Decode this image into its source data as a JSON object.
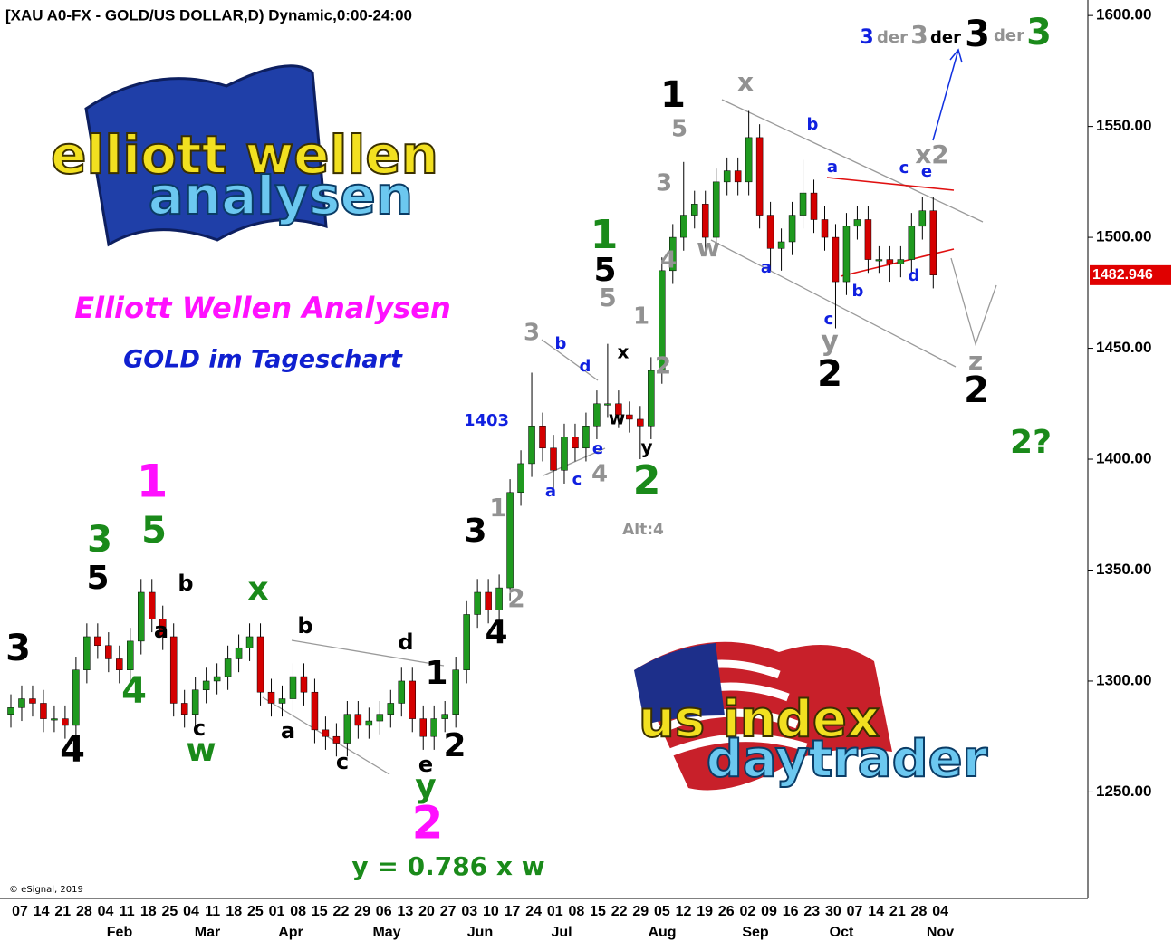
{
  "chart_data": {
    "type": "candlestick",
    "title": "[XAU A0-FX - GOLD/US DOLLAR,D) Dynamic,0:00-24:00",
    "subtitle": "Elliott Wellen Analysen",
    "caption": "GOLD im Tageschart",
    "copyright": "© eSignal, 2019",
    "logo_top": [
      "elliott wellen",
      "analysen"
    ],
    "logo_bottom": [
      "us index",
      "daytrader"
    ],
    "up_color": "#1f9a1f",
    "down_color": "#d40000",
    "open": [
      1285,
      1288,
      1292,
      1290,
      1283,
      1283,
      1280,
      1305,
      1320,
      1316,
      1310,
      1305,
      1318,
      1340,
      1328,
      1320,
      1290,
      1285,
      1296,
      1300,
      1302,
      1310,
      1315,
      1320,
      1295,
      1290,
      1292,
      1302,
      1295,
      1278,
      1275,
      1272,
      1285,
      1280,
      1282,
      1285,
      1290,
      1300,
      1283,
      1275,
      1283,
      1285,
      1305,
      1330,
      1340,
      1332,
      1342,
      1385,
      1398,
      1415,
      1405,
      1395,
      1410,
      1405,
      1415,
      1425,
      1425,
      1420,
      1418,
      1415,
      1440,
      1485,
      1500,
      1510,
      1515,
      1500,
      1525,
      1530,
      1525,
      1545,
      1510,
      1495,
      1498,
      1510,
      1520,
      1508,
      1500,
      1480,
      1505,
      1508,
      1490,
      1490,
      1488,
      1490,
      1505,
      1512
    ],
    "high": [
      1294,
      1298,
      1298,
      1296,
      1289,
      1289,
      1311,
      1326,
      1326,
      1322,
      1316,
      1324,
      1346,
      1346,
      1334,
      1326,
      1296,
      1302,
      1306,
      1308,
      1316,
      1321,
      1326,
      1326,
      1301,
      1298,
      1308,
      1308,
      1301,
      1284,
      1281,
      1291,
      1291,
      1288,
      1291,
      1296,
      1306,
      1306,
      1289,
      1289,
      1291,
      1311,
      1336,
      1346,
      1346,
      1348,
      1391,
      1404,
      1439,
      1421,
      1411,
      1416,
      1416,
      1421,
      1431,
      1452,
      1431,
      1426,
      1424,
      1446,
      1491,
      1506,
      1534,
      1521,
      1521,
      1531,
      1536,
      1536,
      1557,
      1551,
      1516,
      1504,
      1516,
      1535,
      1526,
      1514,
      1506,
      1511,
      1514,
      1514,
      1496,
      1496,
      1496,
      1511,
      1518,
      1518
    ],
    "low": [
      1279,
      1282,
      1284,
      1277,
      1277,
      1274,
      1274,
      1299,
      1310,
      1304,
      1299,
      1299,
      1312,
      1322,
      1314,
      1284,
      1279,
      1279,
      1290,
      1294,
      1296,
      1304,
      1309,
      1289,
      1284,
      1284,
      1286,
      1289,
      1272,
      1269,
      1266,
      1266,
      1274,
      1274,
      1276,
      1279,
      1284,
      1277,
      1269,
      1269,
      1277,
      1279,
      1299,
      1324,
      1326,
      1326,
      1336,
      1379,
      1392,
      1399,
      1385,
      1389,
      1399,
      1399,
      1409,
      1419,
      1414,
      1412,
      1400,
      1409,
      1434,
      1479,
      1494,
      1504,
      1494,
      1494,
      1519,
      1519,
      1519,
      1504,
      1485,
      1485,
      1492,
      1504,
      1502,
      1494,
      1459,
      1474,
      1499,
      1484,
      1484,
      1480,
      1482,
      1484,
      1499,
      1477
    ],
    "close": [
      1288,
      1292,
      1290,
      1283,
      1283,
      1280,
      1305,
      1320,
      1316,
      1310,
      1305,
      1318,
      1340,
      1328,
      1320,
      1290,
      1285,
      1296,
      1300,
      1302,
      1310,
      1315,
      1320,
      1295,
      1290,
      1292,
      1302,
      1295,
      1278,
      1275,
      1272,
      1285,
      1280,
      1282,
      1285,
      1290,
      1300,
      1283,
      1275,
      1283,
      1285,
      1305,
      1330,
      1340,
      1332,
      1342,
      1385,
      1398,
      1415,
      1405,
      1395,
      1410,
      1405,
      1415,
      1425,
      1425,
      1420,
      1418,
      1415,
      1440,
      1485,
      1500,
      1510,
      1515,
      1500,
      1525,
      1530,
      1525,
      1545,
      1510,
      1495,
      1498,
      1510,
      1520,
      1508,
      1500,
      1480,
      1505,
      1508,
      1490,
      1490,
      1488,
      1490,
      1505,
      1512,
      1483
    ],
    "last_price": 1482.946,
    "ylim": [
      1202,
      1607
    ],
    "yticks": [
      {
        "value": 1250,
        "label": "1250.00"
      },
      {
        "value": 1300,
        "label": "1300.00"
      },
      {
        "value": 1350,
        "label": "1350.00"
      },
      {
        "value": 1400,
        "label": "1400.00"
      },
      {
        "value": 1450,
        "label": "1450.00"
      },
      {
        "value": 1500,
        "label": "1500.00"
      },
      {
        "value": 1550,
        "label": "1550.00"
      },
      {
        "value": 1600,
        "label": "1600.00"
      }
    ],
    "xticklabels": [
      "07",
      "14",
      "21",
      "28",
      "04",
      "11",
      "18",
      "25",
      "04",
      "11",
      "18",
      "25",
      "01",
      "08",
      "15",
      "22",
      "29",
      "06",
      "13",
      "20",
      "27",
      "03",
      "10",
      "17",
      "24",
      "01",
      "08",
      "15",
      "22",
      "29",
      "05",
      "12",
      "19",
      "26",
      "02",
      "09",
      "16",
      "23",
      "30",
      "07",
      "14",
      "21",
      "28",
      "04"
    ],
    "months": [
      "Feb",
      "Mar",
      "Apr",
      "May",
      "Jun",
      "Jul",
      "Aug",
      "Sep",
      "Oct",
      "Nov"
    ],
    "annotations": [
      "3",
      "4",
      "5",
      "3",
      "1",
      "5",
      "b",
      "a",
      "4",
      "c",
      "w",
      "x",
      "b",
      "a",
      "c",
      "d",
      "1",
      "e",
      "y",
      "2",
      "2",
      "y = 0.786 x w",
      "3",
      "1",
      "2",
      "4",
      "1403",
      "3",
      "b",
      "d",
      "x",
      "w",
      "y",
      "a",
      "c",
      "e",
      "4",
      "2",
      "Alt:4",
      "1",
      "5",
      "5",
      "1",
      "2",
      "4",
      "3",
      "1",
      "5",
      "w",
      "x",
      "b",
      "a",
      "a",
      "c",
      "y",
      "2",
      "b",
      "d",
      "c",
      "e",
      "x2",
      "z",
      "2",
      "2?",
      "3",
      "der",
      "3",
      "der",
      "3",
      "der",
      "3"
    ]
  }
}
